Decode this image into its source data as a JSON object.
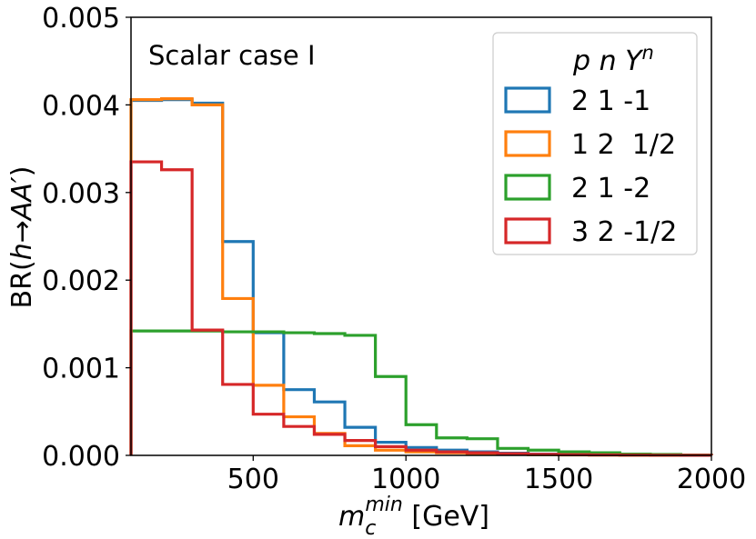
{
  "chart_data": {
    "type": "histogram-step",
    "annotation": "Scalar case I",
    "xlabel": {
      "main": "m",
      "sub": "c",
      "sup": "min",
      "unit": " [GeV]"
    },
    "ylabel": {
      "prefix": "BR(",
      "italic": "h→AA′",
      "suffix": ")"
    },
    "xlim": [
      100,
      2000
    ],
    "ylim": [
      0,
      0.005
    ],
    "xticks": [
      500,
      1000,
      1500,
      2000
    ],
    "xtick_labels": [
      "500",
      "1000",
      "1500",
      "2000"
    ],
    "yticks": [
      0,
      0.001,
      0.002,
      0.003,
      0.004,
      0.005
    ],
    "ytick_labels": [
      "0.000",
      "0.001",
      "0.002",
      "0.003",
      "0.004",
      "0.005"
    ],
    "bin_edges": [
      100,
      200,
      300,
      400,
      500,
      600,
      700,
      800,
      900,
      1000,
      1100,
      1200,
      1300,
      1400,
      1500,
      1600,
      1700,
      1800,
      1900,
      2000
    ],
    "legend": {
      "title": "p n Y",
      "title_sup": "n",
      "position": "upper right"
    },
    "series": [
      {
        "name": "2 1 -1",
        "color": "#1f77b4",
        "values": [
          0.00405,
          0.00406,
          0.00402,
          0.00244,
          0.0014,
          0.00075,
          0.00061,
          0.00032,
          0.00015,
          9e-05,
          6e-05,
          4e-05,
          2.5e-05,
          1.5e-05,
          1e-05,
          7e-06,
          5e-06,
          3e-06,
          2e-06
        ]
      },
      {
        "name": "1 2  1/2",
        "color": "#ff7f0e",
        "values": [
          0.00406,
          0.00407,
          0.004,
          0.00179,
          0.0008,
          0.00044,
          0.00025,
          0.00011,
          6e-05,
          4e-05,
          3e-05,
          2e-05,
          1.2e-05,
          8e-06,
          5e-06,
          3e-06,
          2e-06,
          1e-06,
          1e-06
        ]
      },
      {
        "name": "2 1 -2",
        "color": "#2ca02c",
        "values": [
          0.00142,
          0.00142,
          0.00142,
          0.00141,
          0.00141,
          0.0014,
          0.00139,
          0.00137,
          0.0009,
          0.00035,
          0.0002,
          0.00019,
          8e-05,
          6e-05,
          4e-05,
          3e-05,
          1.5e-05,
          1e-05,
          4e-06
        ]
      },
      {
        "name": "3 2 -1/2",
        "color": "#d62728",
        "values": [
          0.00335,
          0.00326,
          0.00143,
          0.00081,
          0.00047,
          0.00033,
          0.00024,
          0.00017,
          0.0001,
          6e-05,
          4e-05,
          3e-05,
          2e-05,
          1.2e-05,
          8e-06,
          5e-06,
          3e-06,
          2e-06,
          1e-06
        ]
      }
    ]
  }
}
